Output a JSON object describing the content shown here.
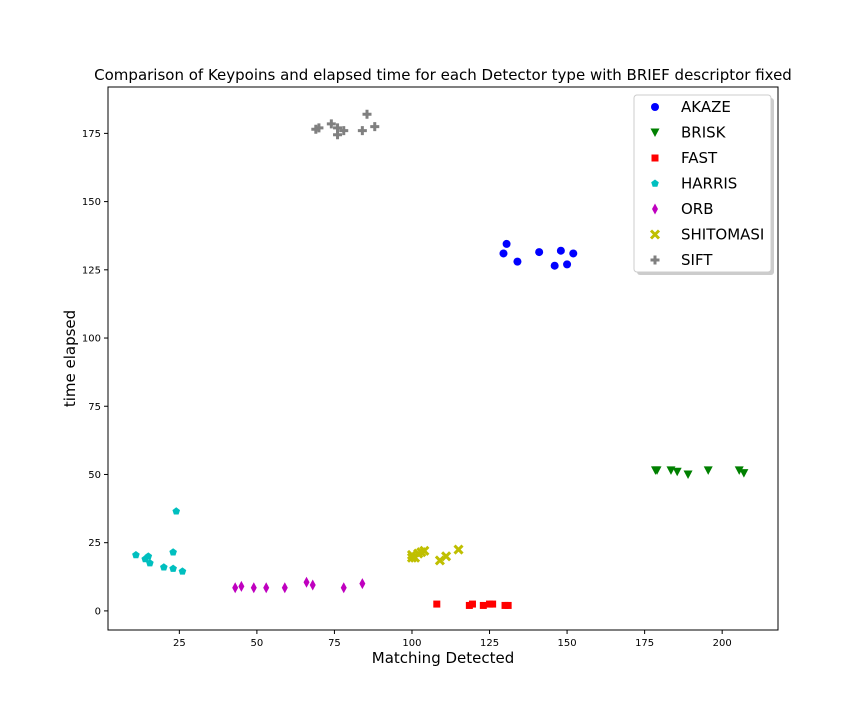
{
  "chart_data": {
    "type": "scatter",
    "title": "Comparison of Keypoins and elapsed time for each Detector type with BRIEF descriptor fixed",
    "xlabel": "Matching Detected",
    "ylabel": "time elapsed",
    "xlim": [
      2,
      218
    ],
    "ylim": [
      -7,
      192
    ],
    "xticks": [
      25,
      50,
      75,
      100,
      125,
      150,
      175,
      200
    ],
    "yticks": [
      0,
      25,
      50,
      75,
      100,
      125,
      150,
      175
    ],
    "grid": false,
    "legend_position": "top-right",
    "series": [
      {
        "name": "AKAZE",
        "color": "#0000ff",
        "marker": "circle",
        "points": [
          [
            129.5,
            131
          ],
          [
            130.5,
            134.5
          ],
          [
            134,
            128
          ],
          [
            141,
            131.5
          ],
          [
            146,
            126.5
          ],
          [
            148,
            132
          ],
          [
            150,
            127
          ],
          [
            152,
            131
          ]
        ]
      },
      {
        "name": "BRISK",
        "color": "#008000",
        "marker": "triangle-down",
        "points": [
          [
            178.5,
            51.5
          ],
          [
            179,
            51.5
          ],
          [
            183.5,
            51.5
          ],
          [
            185.5,
            51
          ],
          [
            189,
            50
          ],
          [
            195.5,
            51.5
          ],
          [
            205.5,
            51.5
          ],
          [
            207,
            50.5
          ]
        ]
      },
      {
        "name": "FAST",
        "color": "#ff0000",
        "marker": "square",
        "points": [
          [
            108,
            2.5
          ],
          [
            118.5,
            2
          ],
          [
            119.5,
            2.5
          ],
          [
            123,
            2
          ],
          [
            125,
            2.5
          ],
          [
            126,
            2.5
          ],
          [
            130,
            2
          ],
          [
            131,
            2
          ]
        ]
      },
      {
        "name": "HARRIS",
        "color": "#00bfbf",
        "marker": "pentagon",
        "points": [
          [
            11,
            20.5
          ],
          [
            14,
            19
          ],
          [
            15,
            20
          ],
          [
            15.5,
            17.5
          ],
          [
            20,
            16
          ],
          [
            23,
            15.5
          ],
          [
            23,
            21.5
          ],
          [
            24,
            36.5
          ],
          [
            26,
            14.5
          ]
        ]
      },
      {
        "name": "ORB",
        "color": "#bf00bf",
        "marker": "thin-diamond",
        "points": [
          [
            43,
            8.5
          ],
          [
            45,
            9
          ],
          [
            49,
            8.5
          ],
          [
            53,
            8.5
          ],
          [
            59,
            8.5
          ],
          [
            66,
            10.5
          ],
          [
            68,
            9.5
          ],
          [
            78,
            8.5
          ],
          [
            84,
            10
          ]
        ]
      },
      {
        "name": "SHITOMASI",
        "color": "#bfbf00",
        "marker": "x-filled",
        "points": [
          [
            100,
            19.5
          ],
          [
            100,
            20.5
          ],
          [
            101,
            19.5
          ],
          [
            102,
            21
          ],
          [
            103,
            21.5
          ],
          [
            104,
            22
          ],
          [
            109,
            18.5
          ],
          [
            111,
            20
          ],
          [
            115,
            22.5
          ]
        ]
      },
      {
        "name": "SIFT",
        "color": "#808080",
        "marker": "plus-filled",
        "points": [
          [
            69,
            176.5
          ],
          [
            70,
            177
          ],
          [
            74,
            178.5
          ],
          [
            76,
            177
          ],
          [
            76,
            174.5
          ],
          [
            78,
            176
          ],
          [
            84,
            176
          ],
          [
            85.5,
            182
          ],
          [
            88,
            177.5
          ]
        ]
      }
    ]
  }
}
